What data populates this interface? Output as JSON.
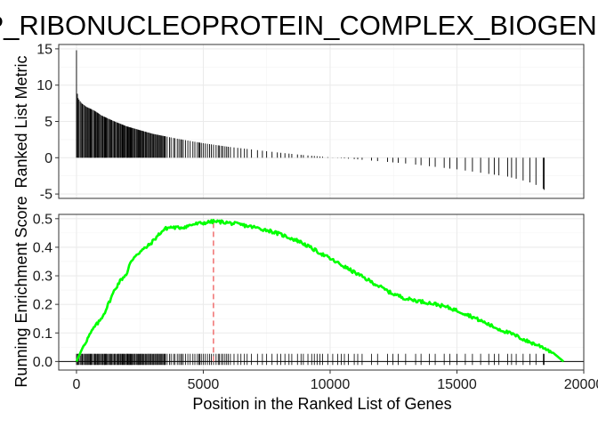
{
  "chart_data": {
    "type": "line",
    "title": "GOBP_RIBONUCLEOPROTEIN_COMPLEX_BIOGENESIS",
    "xlabel": "Position in the Ranked List of Genes",
    "xlim": [
      -700,
      20000
    ],
    "x_ticks": [
      0,
      5000,
      10000,
      15000,
      20000
    ],
    "x_tick_labels": [
      "0",
      "5000",
      "10000",
      "15000",
      "20000"
    ],
    "grid": true,
    "panels": {
      "ranked_list": {
        "type": "bar",
        "ylabel": "Ranked List Metric",
        "ylim": [
          -5.6,
          15.6
        ],
        "y_ticks": [
          -5,
          0,
          5,
          10,
          15
        ],
        "y_tick_labels": [
          "-5",
          "0",
          "5",
          "10",
          "15"
        ],
        "n_genes": 18500,
        "metric_curve": [
          [
            0,
            14.8
          ],
          [
            5,
            11.0
          ],
          [
            20,
            9.5
          ],
          [
            50,
            8.3
          ],
          [
            100,
            8.0
          ],
          [
            200,
            7.5
          ],
          [
            400,
            7.0
          ],
          [
            700,
            6.5
          ],
          [
            1000,
            5.8
          ],
          [
            1500,
            5.0
          ],
          [
            2000,
            4.3
          ],
          [
            3000,
            3.3
          ],
          [
            4000,
            2.6
          ],
          [
            5000,
            2.0
          ],
          [
            6000,
            1.5
          ],
          [
            7000,
            1.1
          ],
          [
            8000,
            0.7
          ],
          [
            9000,
            0.35
          ],
          [
            10000,
            0.05
          ],
          [
            11000,
            -0.2
          ],
          [
            12000,
            -0.5
          ],
          [
            13000,
            -0.8
          ],
          [
            14000,
            -1.2
          ],
          [
            15000,
            -1.6
          ],
          [
            16000,
            -2.1
          ],
          [
            17000,
            -2.6
          ],
          [
            17800,
            -3.3
          ],
          [
            18300,
            -4.0
          ],
          [
            18500,
            -4.6
          ]
        ]
      },
      "running_es": {
        "type": "line",
        "ylabel": "Running Enrichment Score",
        "ylim": [
          -0.03,
          0.515
        ],
        "y_ticks": [
          0.0,
          0.1,
          0.2,
          0.3,
          0.4,
          0.5
        ],
        "y_tick_labels": [
          "0.0",
          "0.1",
          "0.2",
          "0.3",
          "0.4",
          "0.5"
        ],
        "series": [
          {
            "color": "#00ff00",
            "points": [
              [
                0,
                0.0
              ],
              [
                100,
                0.02
              ],
              [
                250,
                0.05
              ],
              [
                500,
                0.09
              ],
              [
                700,
                0.12
              ],
              [
                900,
                0.14
              ],
              [
                1100,
                0.17
              ],
              [
                1300,
                0.21
              ],
              [
                1500,
                0.25
              ],
              [
                1700,
                0.28
              ],
              [
                1900,
                0.3
              ],
              [
                2000,
                0.31
              ],
              [
                2100,
                0.34
              ],
              [
                2300,
                0.37
              ],
              [
                2600,
                0.39
              ],
              [
                2900,
                0.41
              ],
              [
                3100,
                0.43
              ],
              [
                3300,
                0.45
              ],
              [
                3500,
                0.465
              ],
              [
                3700,
                0.47
              ],
              [
                4000,
                0.468
              ],
              [
                4300,
                0.472
              ],
              [
                4600,
                0.48
              ],
              [
                5000,
                0.485
              ],
              [
                5400,
                0.49
              ],
              [
                5800,
                0.488
              ],
              [
                6400,
                0.48
              ],
              [
                7000,
                0.47
              ],
              [
                7600,
                0.458
              ],
              [
                8200,
                0.44
              ],
              [
                8800,
                0.42
              ],
              [
                9400,
                0.39
              ],
              [
                10000,
                0.36
              ],
              [
                10600,
                0.33
              ],
              [
                11200,
                0.3
              ],
              [
                11800,
                0.27
              ],
              [
                12400,
                0.24
              ],
              [
                13000,
                0.22
              ],
              [
                13600,
                0.21
              ],
              [
                14200,
                0.2
              ],
              [
                14800,
                0.185
              ],
              [
                15400,
                0.165
              ],
              [
                16000,
                0.14
              ],
              [
                16600,
                0.115
              ],
              [
                17200,
                0.095
              ],
              [
                17800,
                0.07
              ],
              [
                18400,
                0.05
              ],
              [
                18800,
                0.03
              ],
              [
                19200,
                0.0
              ]
            ]
          }
        ],
        "peak_x": 5400,
        "peak_line_color": "#f07070",
        "zero_line": true
      }
    },
    "colors": {
      "es_line": "#00ff00",
      "peak_line": "#f07070",
      "bars": "#000000",
      "grid": "#ebebeb",
      "panel_border": "#333333"
    }
  }
}
